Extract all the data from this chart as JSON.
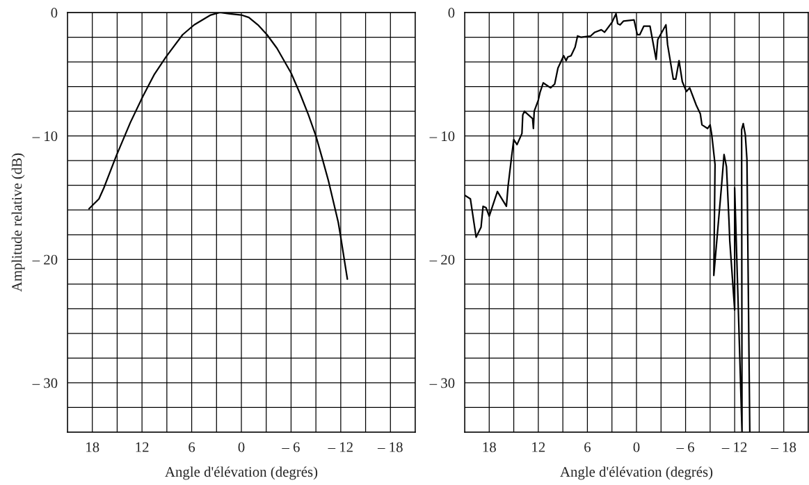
{
  "chart_data": [
    {
      "type": "line",
      "xlabel": "Angle d'élévation (degrés)",
      "ylabel": "Amplitude relative (dB)",
      "xlim": [
        21,
        -21
      ],
      "ylim": [
        -34,
        0
      ],
      "grid": true,
      "line_style": "solid",
      "marker": "none",
      "xticks": [
        {
          "value": 21,
          "label": null
        },
        18,
        {
          "value": 15,
          "label": null
        },
        12,
        {
          "value": 9,
          "label": null
        },
        6,
        {
          "value": 3,
          "label": null
        },
        0,
        {
          "value": -3,
          "label": null
        },
        {
          "value": -6,
          "label": "– 6"
        },
        {
          "value": -9,
          "label": null
        },
        {
          "value": -12,
          "label": "– 12"
        },
        {
          "value": -15,
          "label": null
        },
        {
          "value": -18,
          "label": "– 18"
        },
        {
          "value": -21,
          "label": null
        }
      ],
      "yticks": [
        0,
        {
          "value": -2,
          "label": null
        },
        {
          "value": -4,
          "label": null
        },
        {
          "value": -6,
          "label": null
        },
        {
          "value": -8,
          "label": null
        },
        {
          "value": -10,
          "label": "– 10"
        },
        {
          "value": -12,
          "label": null
        },
        {
          "value": -14,
          "label": null
        },
        {
          "value": -16,
          "label": null
        },
        {
          "value": -18,
          "label": null
        },
        {
          "value": -20,
          "label": "– 20"
        },
        {
          "value": -22,
          "label": null
        },
        {
          "value": -24,
          "label": null
        },
        {
          "value": -26,
          "label": null
        },
        {
          "value": -28,
          "label": null
        },
        {
          "value": -30,
          "label": "– 30"
        },
        {
          "value": -32,
          "label": null
        },
        {
          "value": -34,
          "label": null
        }
      ],
      "series": [
        {
          "color": "#000000",
          "x": [
            18.4,
            17.2,
            16.6,
            15.1,
            13.4,
            11.9,
            10.5,
            9.1,
            7.1,
            5.7,
            3.7,
            2.6,
            1.4,
            0,
            -0.9,
            -2.0,
            -3.1,
            -4.3,
            -6.0,
            -7.1,
            -8.1,
            -9.0,
            -9.8,
            -10.5,
            -11.7,
            -12.0,
            -12.8
          ],
          "values": [
            -15.9,
            -15.1,
            -14.2,
            -11.6,
            -8.9,
            -6.8,
            -5.0,
            -3.6,
            -1.8,
            -1.0,
            -0.2,
            0,
            -0.1,
            -0.2,
            -0.4,
            -1.0,
            -1.8,
            -2.9,
            -4.9,
            -6.6,
            -8.3,
            -10.0,
            -11.9,
            -13.6,
            -17.0,
            -18.2,
            -21.6
          ]
        }
      ]
    },
    {
      "type": "line",
      "xlabel": "Angle d'élévation (degrés)",
      "xlim": [
        21,
        -21
      ],
      "ylim": [
        -34,
        0
      ],
      "grid": true,
      "line_style": "solid",
      "marker": "none",
      "xticks": [
        {
          "value": 21,
          "label": null
        },
        18,
        {
          "value": 15,
          "label": null
        },
        12,
        {
          "value": 9,
          "label": null
        },
        6,
        {
          "value": 3,
          "label": null
        },
        0,
        {
          "value": -3,
          "label": null
        },
        {
          "value": -6,
          "label": "– 6"
        },
        {
          "value": -9,
          "label": null
        },
        {
          "value": -12,
          "label": "– 12"
        },
        {
          "value": -15,
          "label": null
        },
        {
          "value": -18,
          "label": "– 18"
        },
        {
          "value": -21,
          "label": null
        }
      ],
      "yticks": [
        0,
        {
          "value": -2,
          "label": null
        },
        {
          "value": -4,
          "label": null
        },
        {
          "value": -6,
          "label": null
        },
        {
          "value": -8,
          "label": null
        },
        {
          "value": -10,
          "label": "– 10"
        },
        {
          "value": -12,
          "label": null
        },
        {
          "value": -14,
          "label": null
        },
        {
          "value": -16,
          "label": null
        },
        {
          "value": -18,
          "label": null
        },
        {
          "value": -20,
          "label": "– 20"
        },
        {
          "value": -22,
          "label": null
        },
        {
          "value": -24,
          "label": null
        },
        {
          "value": -26,
          "label": null
        },
        {
          "value": -28,
          "label": null
        },
        {
          "value": -30,
          "label": "– 30"
        },
        {
          "value": -32,
          "label": null
        },
        {
          "value": -34,
          "label": null
        }
      ],
      "series": [
        {
          "color": "#000000",
          "x": [
            21,
            20.3,
            19.6,
            19.0,
            18.75,
            18.4,
            18.0,
            17.0,
            15.9,
            15.7,
            15.25,
            15.0,
            14.6,
            14.0,
            13.9,
            13.7,
            12.7,
            12.6,
            12.5,
            12.0,
            11.8,
            11.4,
            10.5,
            10.0,
            9.6,
            8.9,
            8.6,
            8.4,
            8.0,
            7.5,
            7.2,
            6.8,
            5.6,
            5.1,
            4.3,
            3.9,
            3.0,
            2.5,
            2.3,
            2.0,
            1.6,
            0.3,
            -0.1,
            -0.4,
            -0.9,
            -1.65,
            -2.4,
            -2.6,
            -3.6,
            -3.8,
            -4.5,
            -4.8,
            -5.2,
            -5.6,
            -6.1,
            -6.5,
            -7.3,
            -7.8,
            -8.0,
            -8.7,
            -9.0,
            -9.2,
            -9.6,
            -9.45,
            -10.4,
            -10.7,
            -11.0,
            -11.3,
            -11.4,
            -12.0,
            -12.0,
            -12.9,
            -12.85,
            -13.05,
            -13.3,
            -13.5,
            -13.85
          ],
          "values": [
            -14.8,
            -15.1,
            -18.2,
            -17.4,
            -15.7,
            -15.8,
            -16.5,
            -14.5,
            -15.7,
            -14.1,
            -11.6,
            -10.3,
            -10.7,
            -9.8,
            -8.3,
            -8.0,
            -8.6,
            -9.4,
            -8.0,
            -7.1,
            -6.5,
            -5.7,
            -6.1,
            -5.8,
            -4.5,
            -3.5,
            -3.9,
            -3.6,
            -3.5,
            -2.8,
            -1.9,
            -2.0,
            -1.9,
            -1.6,
            -1.4,
            -1.6,
            -0.8,
            -0.1,
            -0.9,
            -1.0,
            -0.7,
            -0.6,
            -1.8,
            -1.8,
            -1.1,
            -1.1,
            -3.8,
            -2.2,
            -1.0,
            -2.6,
            -5.4,
            -5.4,
            -3.9,
            -5.6,
            -6.4,
            -6.1,
            -7.5,
            -8.2,
            -9.1,
            -9.4,
            -9.1,
            -9.9,
            -12.3,
            -21.3,
            -14.0,
            -11.5,
            -12.5,
            -16.8,
            -18.5,
            -24.1,
            -14.2,
            -34,
            -9.5,
            -9.0,
            -9.9,
            -11.9,
            -34
          ]
        }
      ]
    }
  ]
}
